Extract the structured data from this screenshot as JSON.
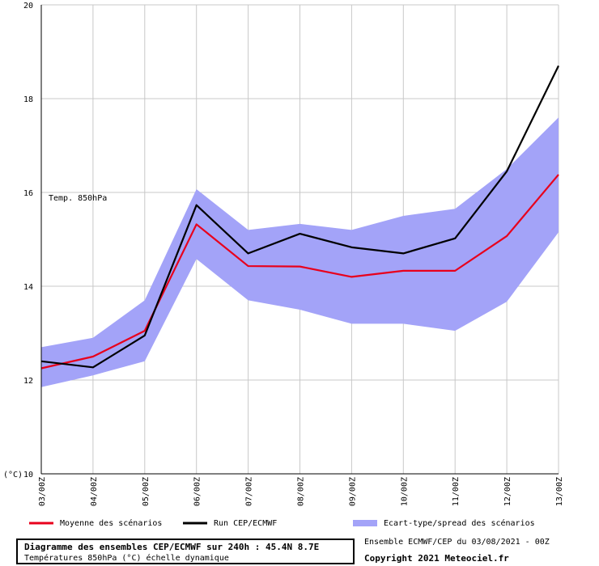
{
  "chart_data": {
    "type": "line",
    "annotation": "Temp. 850hPa",
    "yunit": "(°C)",
    "ylim": [
      10,
      20
    ],
    "yticks": [
      10,
      12,
      14,
      16,
      18,
      20
    ],
    "categories": [
      "03/00Z",
      "04/00Z",
      "05/00Z",
      "06/00Z",
      "07/00Z",
      "08/00Z",
      "09/00Z",
      "10/00Z",
      "11/00Z",
      "12/00Z",
      "13/00Z"
    ],
    "grid": true,
    "legend_position": "bottom",
    "series": [
      {
        "name": "Moyenne des scénarios",
        "color": "#e8001c",
        "values": [
          12.25,
          12.5,
          13.05,
          15.32,
          14.43,
          14.42,
          14.2,
          14.33,
          14.33,
          15.07,
          16.38
        ]
      },
      {
        "name": "Run CEP/ECMWF",
        "color": "#000000",
        "values": [
          12.4,
          12.27,
          12.95,
          15.73,
          14.7,
          15.12,
          14.83,
          14.7,
          15.02,
          16.45,
          18.7
        ]
      }
    ],
    "band": {
      "name": "Ecart-type/spread des scénarios",
      "color": "#a3a3f8",
      "upper": [
        12.7,
        12.9,
        13.7,
        16.07,
        15.2,
        15.33,
        15.2,
        15.5,
        15.65,
        16.5,
        17.6
      ],
      "lower": [
        11.85,
        12.1,
        12.4,
        14.58,
        13.7,
        13.5,
        13.2,
        13.2,
        13.05,
        13.67,
        15.15
      ]
    }
  },
  "footer": {
    "title": "Diagramme des ensembles CEP/ECMWF sur 240h : 45.4N 8.7E",
    "subtitle": "Températures 850hPa (°C) échelle dynamique",
    "run_info": "Ensemble ECMWF/CEP du 03/08/2021 - 00Z",
    "copyright": "Copyright 2021 Meteociel.fr"
  }
}
